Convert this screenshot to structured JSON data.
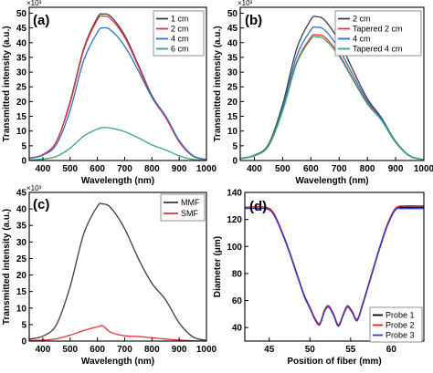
{
  "chart_data": [
    {
      "panel": "(a)",
      "type": "line",
      "multiplier": "×10³",
      "xlabel": "Wavelength (nm)",
      "ylabel": "Transmitted intensity (a.u.)",
      "xlim": [
        350,
        1000
      ],
      "ylim": [
        0,
        52
      ],
      "xticks": [
        400,
        500,
        600,
        700,
        800,
        900,
        1000
      ],
      "yticks": [
        0,
        5,
        10,
        15,
        20,
        25,
        30,
        35,
        40,
        45,
        50
      ],
      "legend_position": "top-right",
      "x": [
        350,
        400,
        450,
        500,
        550,
        600,
        620,
        650,
        700,
        750,
        800,
        850,
        900,
        950,
        1000
      ],
      "series": [
        {
          "name": "1 cm",
          "color": "#3d3d3d",
          "values": [
            0.8,
            2.0,
            6.5,
            20.0,
            38.0,
            48.5,
            49.7,
            48.8,
            42.5,
            32.5,
            22.0,
            15.0,
            6.5,
            1.6,
            0.3
          ]
        },
        {
          "name": "2 cm",
          "color": "#e8323c",
          "values": [
            0.8,
            2.0,
            6.5,
            19.5,
            37.5,
            47.8,
            49.0,
            48.0,
            41.8,
            32.0,
            21.5,
            14.6,
            6.3,
            1.5,
            0.3
          ]
        },
        {
          "name": "4 cm",
          "color": "#2f6fd3",
          "values": [
            0.7,
            1.8,
            5.5,
            17.0,
            34.0,
            43.5,
            45.0,
            44.2,
            38.8,
            30.5,
            21.5,
            15.2,
            6.8,
            1.7,
            0.3
          ]
        },
        {
          "name": "6 cm",
          "color": "#3aaa6e",
          "values": [
            0.2,
            0.5,
            1.4,
            4.2,
            8.3,
            10.7,
            11.2,
            11.0,
            9.8,
            7.7,
            5.3,
            3.6,
            1.6,
            0.4,
            0.1
          ]
        }
      ]
    },
    {
      "panel": "(b)",
      "type": "line",
      "multiplier": "×10³",
      "xlabel": "Wavelength (nm)",
      "ylabel": "Transmitted intensity (a.u.)",
      "xlim": [
        350,
        1000
      ],
      "ylim": [
        0,
        52
      ],
      "xticks": [
        400,
        500,
        600,
        700,
        800,
        900,
        1000
      ],
      "yticks": [
        0,
        5,
        10,
        15,
        20,
        25,
        30,
        35,
        40,
        45,
        50
      ],
      "legend_position": "top-right",
      "x": [
        350,
        400,
        450,
        500,
        550,
        600,
        620,
        650,
        700,
        750,
        800,
        850,
        900,
        950,
        1000
      ],
      "series": [
        {
          "name": "2 cm",
          "color": "#3d3d3d",
          "values": [
            0.7,
            1.8,
            5.5,
            19.0,
            38.0,
            47.8,
            48.8,
            47.5,
            40.5,
            30.5,
            21.0,
            14.5,
            6.5,
            1.6,
            0.3
          ]
        },
        {
          "name": "Tapered 2 cm",
          "color": "#e8323c",
          "values": [
            0.6,
            1.6,
            5.0,
            17.0,
            33.5,
            41.8,
            42.6,
            41.8,
            36.0,
            27.6,
            19.5,
            13.8,
            6.2,
            1.5,
            0.3
          ]
        },
        {
          "name": "4 cm",
          "color": "#2f6fd3",
          "values": [
            0.7,
            1.7,
            5.2,
            17.8,
            35.5,
            44.3,
            45.2,
            44.2,
            37.8,
            28.8,
            20.2,
            14.2,
            6.4,
            1.6,
            0.3
          ]
        },
        {
          "name": "Tapered 4 cm",
          "color": "#3aaa6e",
          "values": [
            0.6,
            1.6,
            4.9,
            16.8,
            33.0,
            41.2,
            42.0,
            41.0,
            35.4,
            27.2,
            19.2,
            13.6,
            6.1,
            1.5,
            0.3
          ]
        }
      ]
    },
    {
      "panel": "(c)",
      "type": "line",
      "multiplier": "×10³",
      "xlabel": "Wavelength (nm)",
      "ylabel": "Transmitted intensity (a.u.)",
      "xlim": [
        350,
        1000
      ],
      "ylim": [
        0,
        45
      ],
      "xticks": [
        400,
        500,
        600,
        700,
        800,
        900,
        1000
      ],
      "yticks": [
        0,
        5,
        10,
        15,
        20,
        25,
        30,
        35,
        40,
        45
      ],
      "legend_position": "top-right",
      "x": [
        350,
        400,
        450,
        500,
        550,
        600,
        620,
        650,
        700,
        750,
        800,
        850,
        900,
        950,
        1000
      ],
      "series": [
        {
          "name": "MMF",
          "color": "#3d3d3d",
          "values": [
            0.6,
            1.5,
            5.0,
            16.5,
            32.5,
            40.8,
            41.5,
            40.3,
            34.0,
            25.0,
            17.5,
            12.5,
            5.5,
            1.3,
            0.2
          ]
        },
        {
          "name": "SMF",
          "color": "#e8323c",
          "values": [
            0.2,
            0.3,
            0.7,
            1.8,
            3.2,
            4.3,
            4.6,
            2.6,
            1.6,
            1.4,
            1.0,
            0.6,
            0.3,
            0.1,
            0.0
          ]
        }
      ]
    },
    {
      "panel": "(d)",
      "type": "line",
      "xlabel": "Position of fiber (mm)",
      "ylabel": "Diameter (μm)",
      "xlim": [
        42,
        64
      ],
      "ylim": [
        30,
        140
      ],
      "xticks": [
        45,
        50,
        55,
        60
      ],
      "yticks": [
        40,
        60,
        80,
        100,
        120,
        140
      ],
      "legend_position": "bottom-right",
      "x": [
        42,
        44.5,
        45.5,
        46.5,
        47.5,
        48.5,
        49.3,
        50.0,
        50.6,
        51.2,
        51.8,
        52.3,
        52.9,
        53.5,
        54.1,
        54.6,
        55.2,
        55.8,
        56.5,
        57.5,
        58.5,
        59.5,
        60.5,
        61.5,
        64
      ],
      "series": [
        {
          "name": "Probe 1",
          "color": "#000000",
          "values": [
            129,
            129,
            125,
            112,
            96,
            78,
            64,
            55,
            47,
            43,
            53,
            56,
            50,
            42,
            50,
            56,
            52,
            46,
            58,
            78,
            98,
            116,
            128,
            129,
            129
          ]
        },
        {
          "name": "Probe 2",
          "color": "#e02020",
          "values": [
            129,
            129,
            125,
            112,
            96,
            78,
            64,
            55,
            47,
            43,
            53,
            56,
            50,
            42,
            50,
            56,
            52,
            46,
            58,
            78,
            98,
            116,
            128,
            130,
            130
          ]
        },
        {
          "name": "Probe 3",
          "color": "#2a3bd6",
          "values": [
            128,
            128,
            124,
            111,
            95,
            77,
            63,
            54,
            46,
            42,
            52,
            55,
            49,
            41,
            49,
            55,
            51,
            45,
            57,
            77,
            97,
            115,
            127,
            128,
            128
          ]
        }
      ]
    }
  ]
}
